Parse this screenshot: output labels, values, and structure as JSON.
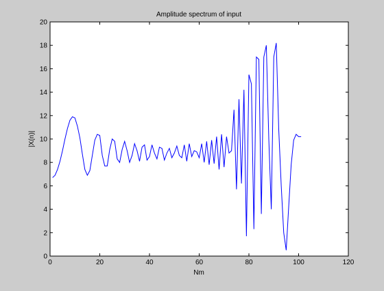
{
  "chart_data": {
    "type": "line",
    "title": "Amplitude spectrum of input",
    "xlabel": "Nm",
    "ylabel": "|X(n)|",
    "xlim": [
      0,
      120
    ],
    "ylim": [
      0,
      20
    ],
    "xticks": [
      0,
      20,
      40,
      60,
      80,
      100,
      120
    ],
    "yticks": [
      0,
      2,
      4,
      6,
      8,
      10,
      12,
      14,
      16,
      18,
      20
    ],
    "grid": false,
    "line_color": "#0000ff",
    "series": [
      {
        "x": [
          1,
          2,
          3,
          4,
          5,
          6,
          7,
          8,
          9,
          10,
          11,
          12,
          13,
          14,
          15,
          16,
          17,
          18,
          19,
          20,
          21,
          22,
          23,
          24,
          25,
          26,
          27,
          28,
          29,
          30,
          31,
          32,
          33,
          34,
          35,
          36,
          37,
          38,
          39,
          40,
          41,
          42,
          43,
          44,
          45,
          46,
          47,
          48,
          49,
          50,
          51,
          52,
          53,
          54,
          55,
          56,
          57,
          58,
          59,
          60,
          61,
          62,
          63,
          64,
          65,
          66,
          67,
          68,
          69,
          70,
          71,
          72,
          73,
          74,
          75,
          76,
          77,
          78,
          79,
          80,
          81,
          82,
          83,
          84,
          85,
          86,
          87,
          88,
          89,
          90,
          91,
          92,
          93,
          94,
          95,
          96,
          97,
          98,
          99,
          100,
          101
        ],
        "values": [
          6.7,
          6.9,
          7.4,
          8.1,
          9.0,
          10.0,
          10.9,
          11.6,
          11.9,
          11.8,
          11.1,
          10.1,
          8.7,
          7.4,
          6.9,
          7.3,
          8.6,
          9.9,
          10.4,
          10.3,
          8.6,
          7.7,
          7.7,
          9.1,
          10.0,
          9.8,
          8.3,
          8.0,
          9.1,
          9.8,
          9.0,
          8.0,
          8.6,
          9.6,
          9.0,
          8.1,
          9.3,
          9.5,
          8.2,
          8.5,
          9.5,
          8.8,
          8.3,
          9.3,
          9.2,
          8.2,
          8.8,
          9.2,
          8.4,
          8.8,
          9.4,
          8.6,
          8.4,
          9.5,
          8.1,
          9.6,
          8.5,
          9.0,
          8.9,
          8.4,
          9.6,
          8.0,
          9.8,
          7.8,
          9.9,
          7.9,
          10.2,
          7.4,
          10.4,
          7.6,
          10.2,
          8.8,
          9.0,
          12.5,
          5.7,
          13.4,
          6.2,
          14.2,
          1.7,
          15.5,
          14.7,
          2.3,
          17.0,
          16.8,
          3.6,
          17.0,
          18.0,
          10.0,
          4.0,
          17.0,
          18.2,
          10.8,
          6.0,
          2.0,
          0.5,
          4.2,
          7.8,
          9.9,
          10.4,
          10.2,
          10.2
        ]
      }
    ]
  }
}
